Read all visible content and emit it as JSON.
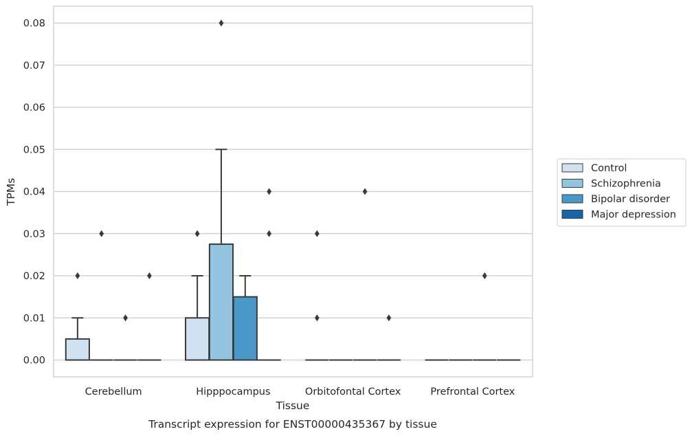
{
  "chart_data": {
    "type": "box",
    "title": "",
    "caption": "Transcript expression for ENST00000435367 by tissue",
    "xlabel": "Tissue",
    "ylabel": "TPMs",
    "ylim": [
      -0.004,
      0.084
    ],
    "yticks": [
      "0.00",
      "0.01",
      "0.02",
      "0.03",
      "0.04",
      "0.05",
      "0.06",
      "0.07",
      "0.08"
    ],
    "grid": "horizontal",
    "legend_position": "right",
    "categories": [
      "Cerebellum",
      "Hipppocampus",
      "Orbitofontal Cortex",
      "Prefrontal Cortex"
    ],
    "series": [
      {
        "name": "Control",
        "color": "#d0e1f2",
        "boxes": [
          {
            "q1": 0.0,
            "median": 0.0,
            "q3": 0.005,
            "whisker_low": 0.0,
            "whisker_high": 0.01,
            "outliers": [
              0.02
            ]
          },
          {
            "q1": 0.0,
            "median": 0.0,
            "q3": 0.01,
            "whisker_low": 0.0,
            "whisker_high": 0.02,
            "outliers": [
              0.03
            ]
          },
          {
            "q1": 0.0,
            "median": 0.0,
            "q3": 0.0,
            "whisker_low": 0.0,
            "whisker_high": 0.0,
            "outliers": [
              0.01,
              0.03
            ]
          },
          {
            "q1": 0.0,
            "median": 0.0,
            "q3": 0.0,
            "whisker_low": 0.0,
            "whisker_high": 0.0,
            "outliers": []
          }
        ]
      },
      {
        "name": "Schizophrenia",
        "color": "#94c4df",
        "boxes": [
          {
            "q1": 0.0,
            "median": 0.0,
            "q3": 0.0,
            "whisker_low": 0.0,
            "whisker_high": 0.0,
            "outliers": [
              0.03
            ]
          },
          {
            "q1": 0.0,
            "median": 0.0,
            "q3": 0.0275,
            "whisker_low": 0.0,
            "whisker_high": 0.05,
            "outliers": [
              0.08
            ]
          },
          {
            "q1": 0.0,
            "median": 0.0,
            "q3": 0.0,
            "whisker_low": 0.0,
            "whisker_high": 0.0,
            "outliers": []
          },
          {
            "q1": 0.0,
            "median": 0.0,
            "q3": 0.0,
            "whisker_low": 0.0,
            "whisker_high": 0.0,
            "outliers": []
          }
        ]
      },
      {
        "name": "Bipolar disorder",
        "color": "#4a98c9",
        "boxes": [
          {
            "q1": 0.0,
            "median": 0.0,
            "q3": 0.0,
            "whisker_low": 0.0,
            "whisker_high": 0.0,
            "outliers": [
              0.01
            ]
          },
          {
            "q1": 0.0,
            "median": 0.0,
            "q3": 0.015,
            "whisker_low": 0.0,
            "whisker_high": 0.02,
            "outliers": []
          },
          {
            "q1": 0.0,
            "median": 0.0,
            "q3": 0.0,
            "whisker_low": 0.0,
            "whisker_high": 0.0,
            "outliers": [
              0.04
            ]
          },
          {
            "q1": 0.0,
            "median": 0.0,
            "q3": 0.0,
            "whisker_low": 0.0,
            "whisker_high": 0.0,
            "outliers": [
              0.02
            ]
          }
        ]
      },
      {
        "name": "Major depression",
        "color": "#1764ab",
        "boxes": [
          {
            "q1": 0.0,
            "median": 0.0,
            "q3": 0.0,
            "whisker_low": 0.0,
            "whisker_high": 0.0,
            "outliers": [
              0.02
            ]
          },
          {
            "q1": 0.0,
            "median": 0.0,
            "q3": 0.0,
            "whisker_low": 0.0,
            "whisker_high": 0.0,
            "outliers": [
              0.03,
              0.04
            ]
          },
          {
            "q1": 0.0,
            "median": 0.0,
            "q3": 0.0,
            "whisker_low": 0.0,
            "whisker_high": 0.0,
            "outliers": [
              0.01
            ]
          },
          {
            "q1": 0.0,
            "median": 0.0,
            "q3": 0.0,
            "whisker_low": 0.0,
            "whisker_high": 0.0,
            "outliers": []
          }
        ]
      }
    ]
  }
}
